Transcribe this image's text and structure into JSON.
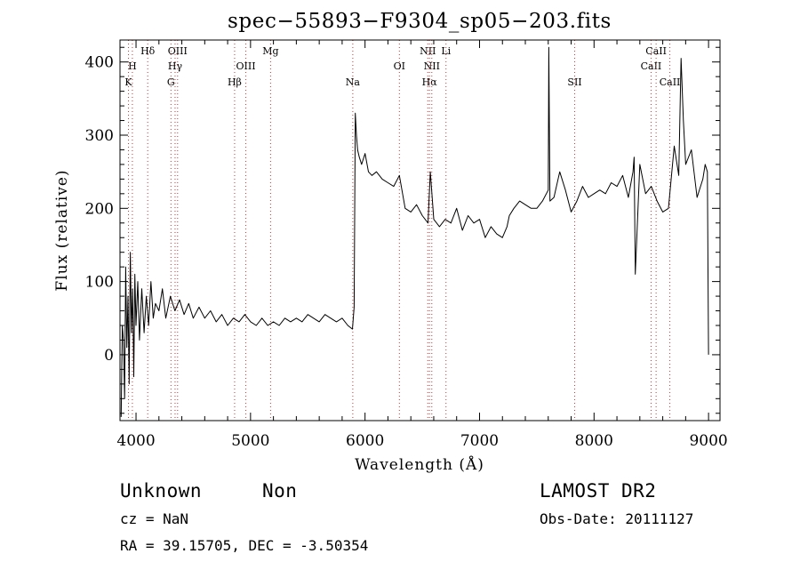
{
  "chart_data": {
    "type": "line",
    "title": "spec−55893−F9304_sp05−203.fits",
    "xlabel": "Wavelength (Å)",
    "ylabel": "Flux (relative)",
    "xlim": [
      3860,
      9100
    ],
    "ylim": [
      -90,
      430
    ],
    "xticks": [
      4000,
      5000,
      6000,
      7000,
      8000,
      9000
    ],
    "yticks": [
      0,
      100,
      200,
      300,
      400
    ],
    "grid": false,
    "line_color": "#000000",
    "marker_color": "#cc3333",
    "lines": [
      {
        "label": "K",
        "x": 3934,
        "row": 3
      },
      {
        "label": "H",
        "x": 3968,
        "row": 2
      },
      {
        "label": "Hδ",
        "x": 4102,
        "row": 1
      },
      {
        "label": "G",
        "x": 4305,
        "row": 3
      },
      {
        "label": "Hγ",
        "x": 4341,
        "row": 2
      },
      {
        "label": "OIII",
        "x": 4363,
        "row": 1
      },
      {
        "label": "Hβ",
        "x": 4861,
        "row": 3
      },
      {
        "label": "OIII",
        "x": 4959,
        "row": 2
      },
      {
        "label": "Mg",
        "x": 5175,
        "row": 1
      },
      {
        "label": "Na",
        "x": 5893,
        "row": 3
      },
      {
        "label": "OI",
        "x": 6300,
        "row": 2
      },
      {
        "label": "NII",
        "x": 6548,
        "row": 1
      },
      {
        "label": "Hα",
        "x": 6563,
        "row": 3
      },
      {
        "label": "NII",
        "x": 6583,
        "row": 2
      },
      {
        "label": "Li",
        "x": 6707,
        "row": 1
      },
      {
        "label": "SII",
        "x": 7831,
        "row": 3
      },
      {
        "label": "CaII",
        "x": 8498,
        "row": 2
      },
      {
        "label": "CaII",
        "x": 8542,
        "row": 1
      },
      {
        "label": "CaII",
        "x": 8662,
        "row": 3
      }
    ],
    "series": [
      {
        "x": [
          3870,
          3880,
          3890,
          3900,
          3910,
          3920,
          3930,
          3940,
          3950,
          3960,
          3970,
          3980,
          3990,
          4000,
          4015,
          4030,
          4050,
          4070,
          4090,
          4110,
          4130,
          4150,
          4170,
          4200,
          4230,
          4260,
          4300,
          4340,
          4380,
          4420,
          4460,
          4500,
          4550,
          4600,
          4650,
          4700,
          4750,
          4800,
          4850,
          4900,
          4950,
          5000,
          5050,
          5100,
          5150,
          5200,
          5250,
          5300,
          5350,
          5400,
          5450,
          5500,
          5550,
          5600,
          5650,
          5700,
          5750,
          5800,
          5850,
          5890,
          5905,
          5915,
          5925,
          5935,
          5950,
          5970,
          6000,
          6030,
          6060,
          6100,
          6150,
          6200,
          6250,
          6300,
          6350,
          6400,
          6450,
          6500,
          6550,
          6570,
          6600,
          6650,
          6700,
          6750,
          6800,
          6850,
          6900,
          6950,
          7000,
          7050,
          7100,
          7150,
          7200,
          7240,
          7260,
          7300,
          7350,
          7400,
          7450,
          7500,
          7550,
          7600,
          7605,
          7615,
          7650,
          7700,
          7750,
          7800,
          7850,
          7900,
          7950,
          8000,
          8050,
          8100,
          8150,
          8200,
          8250,
          8300,
          8340,
          8350,
          8360,
          8400,
          8450,
          8500,
          8550,
          8600,
          8650,
          8700,
          8740,
          8760,
          8780,
          8800,
          8850,
          8900,
          8950,
          8970,
          8990,
          9000
        ],
        "y": [
          -85,
          40,
          20,
          -60,
          120,
          10,
          80,
          -40,
          140,
          30,
          90,
          -30,
          110,
          40,
          100,
          20,
          90,
          30,
          80,
          40,
          100,
          50,
          70,
          60,
          90,
          50,
          80,
          60,
          75,
          55,
          70,
          50,
          65,
          50,
          60,
          45,
          55,
          40,
          50,
          45,
          55,
          45,
          40,
          50,
          40,
          45,
          40,
          50,
          45,
          50,
          45,
          55,
          50,
          45,
          55,
          50,
          45,
          50,
          40,
          35,
          65,
          330,
          300,
          280,
          270,
          260,
          275,
          250,
          245,
          250,
          240,
          235,
          230,
          245,
          200,
          195,
          205,
          190,
          180,
          250,
          185,
          175,
          185,
          180,
          200,
          170,
          190,
          180,
          185,
          160,
          175,
          165,
          160,
          175,
          190,
          200,
          210,
          205,
          200,
          200,
          210,
          225,
          420,
          210,
          215,
          250,
          225,
          195,
          210,
          230,
          215,
          220,
          225,
          220,
          235,
          230,
          245,
          215,
          250,
          270,
          110,
          260,
          220,
          230,
          210,
          195,
          200,
          285,
          245,
          405,
          320,
          260,
          280,
          215,
          240,
          260,
          250,
          0
        ]
      }
    ]
  },
  "footer": {
    "object_class": "Unknown",
    "subclass": "Non",
    "survey": "LAMOST DR2",
    "cz": "cz = NaN",
    "obs_date": "Obs-Date: 20111127",
    "coords": "RA =  39.15705, DEC =  -3.50354"
  }
}
